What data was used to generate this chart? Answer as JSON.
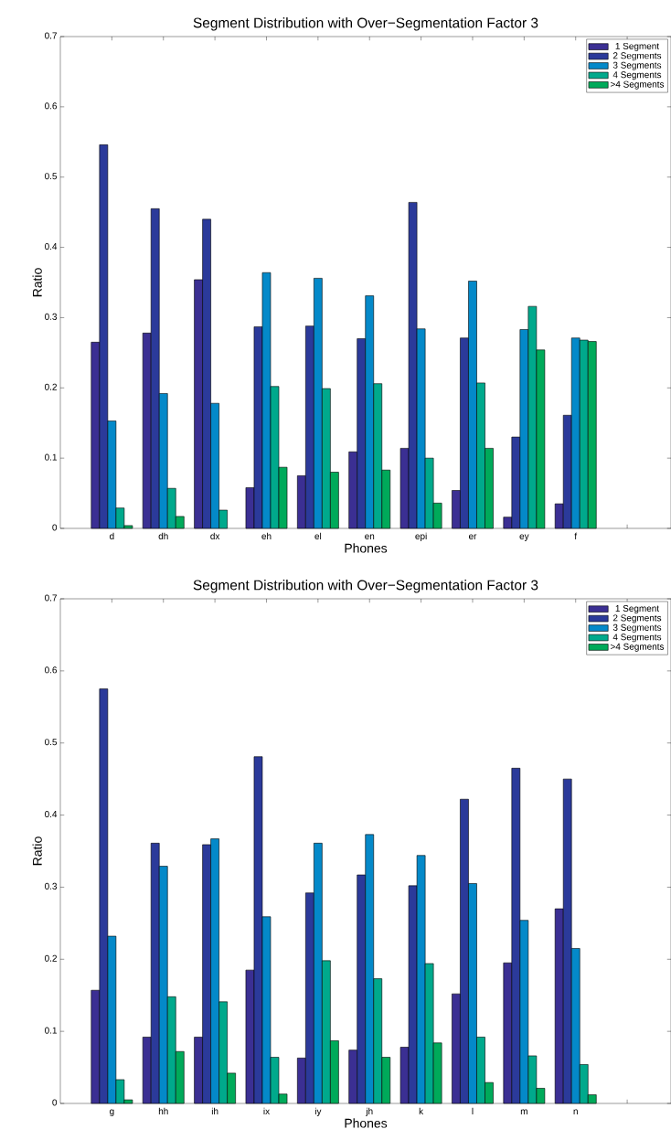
{
  "chart_data": [
    {
      "type": "bar",
      "title": "Segment Distribution with Over−Segmentation Factor 3",
      "xlabel": "Phones",
      "ylabel": "Ratio",
      "categories": [
        "d",
        "dh",
        "dx",
        "eh",
        "el",
        "en",
        "epi",
        "er",
        "ey",
        "f",
        null
      ],
      "series": [
        {
          "name": "1 Segment",
          "color": "#3b2f93",
          "values": [
            0.265,
            0.278,
            0.354,
            0.058,
            0.075,
            0.109,
            0.114,
            0.054,
            0.016,
            0.035,
            null
          ]
        },
        {
          "name": "2 Segments",
          "color": "#2b3a9a",
          "values": [
            0.546,
            0.455,
            0.44,
            0.287,
            0.288,
            0.27,
            0.464,
            0.271,
            0.13,
            0.161,
            null
          ]
        },
        {
          "name": "3 Segments",
          "color": "#0489c9",
          "values": [
            0.153,
            0.192,
            0.178,
            0.364,
            0.356,
            0.331,
            0.284,
            0.352,
            0.283,
            0.271,
            null
          ]
        },
        {
          "name": "4 Segments",
          "color": "#00a98c",
          "values": [
            0.029,
            0.057,
            0.026,
            0.202,
            0.199,
            0.206,
            0.1,
            0.207,
            0.316,
            0.268,
            null
          ]
        },
        {
          "name": ">4 Segments",
          "color": "#00aa5a",
          "values": [
            0.004,
            0.017,
            null,
            0.087,
            0.08,
            0.083,
            0.036,
            0.114,
            0.254,
            0.266,
            null
          ]
        }
      ],
      "ylim": [
        0,
        0.7
      ],
      "yticks": [
        0,
        0.1,
        0.2,
        0.3,
        0.4,
        0.5,
        0.6,
        0.7
      ],
      "legend": "top right"
    },
    {
      "type": "bar",
      "title": "Segment Distribution with Over−Segmentation Factor 3",
      "xlabel": "Phones",
      "ylabel": "Ratio",
      "categories": [
        "g",
        "hh",
        "ih",
        "ix",
        "iy",
        "jh",
        "k",
        "l",
        "m",
        "n",
        null
      ],
      "series": [
        {
          "name": "1 Segment",
          "color": "#3b2f93",
          "values": [
            0.157,
            0.092,
            0.092,
            0.185,
            0.063,
            0.074,
            0.078,
            0.152,
            0.195,
            0.27,
            null
          ]
        },
        {
          "name": "2 Segments",
          "color": "#2b3a9a",
          "values": [
            0.575,
            0.361,
            0.359,
            0.481,
            0.292,
            0.317,
            0.302,
            0.422,
            0.465,
            0.45,
            null
          ]
        },
        {
          "name": "3 Segments",
          "color": "#0489c9",
          "values": [
            0.232,
            0.329,
            0.367,
            0.259,
            0.361,
            0.373,
            0.344,
            0.305,
            0.254,
            0.215,
            null
          ]
        },
        {
          "name": "4 Segments",
          "color": "#00a98c",
          "values": [
            0.033,
            0.148,
            0.141,
            0.064,
            0.198,
            0.173,
            0.194,
            0.092,
            0.066,
            0.054,
            null
          ]
        },
        {
          "name": ">4 Segments",
          "color": "#00aa5a",
          "values": [
            0.005,
            0.072,
            0.042,
            0.013,
            0.087,
            0.064,
            0.084,
            0.029,
            0.021,
            0.012,
            null
          ]
        }
      ],
      "ylim": [
        0,
        0.7
      ],
      "yticks": [
        0,
        0.1,
        0.2,
        0.3,
        0.4,
        0.5,
        0.6,
        0.7
      ],
      "legend": "top right"
    }
  ]
}
